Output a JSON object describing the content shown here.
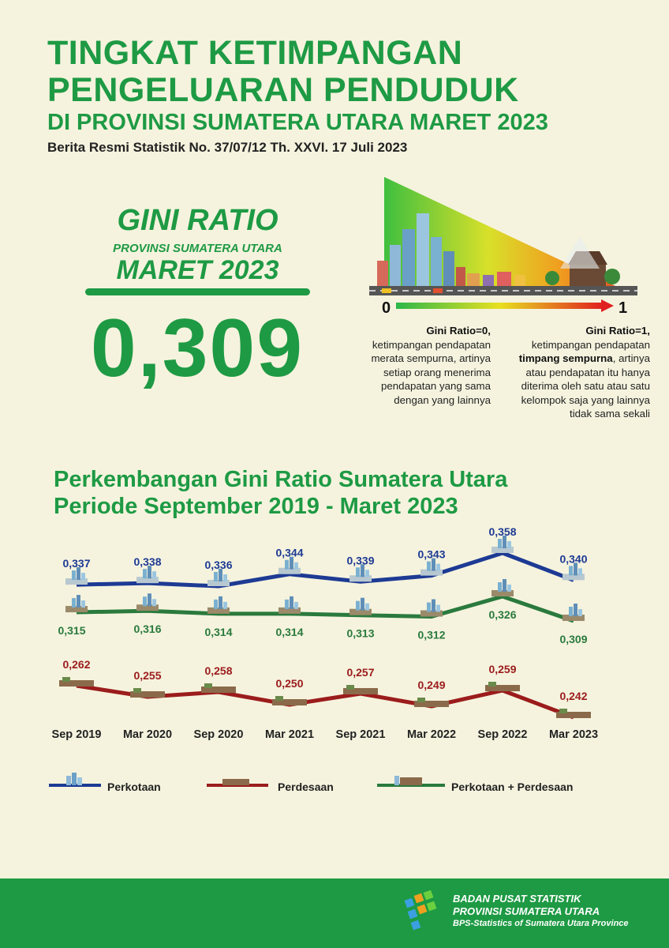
{
  "header": {
    "title_line1": "TINGKAT KETIMPANGAN",
    "title_line2": "PENGELUARAN PENDUDUK",
    "title_line3": "DI PROVINSI SUMATERA UTARA MARET 2023",
    "subtitle": "Berita Resmi Statistik No. 37/07/12 Th. XXVI. 17 Juli 2023"
  },
  "gini": {
    "label1": "GINI RATIO",
    "label2": "PROVINSI SUMATERA UTARA",
    "label3": "MARET 2023",
    "value": "0,309"
  },
  "scale": {
    "min_label": "0",
    "max_label": "1",
    "left_title": "Gini Ratio=0,",
    "left_text": "ketimpangan pendapatan merata sempurna, artinya setiap orang menerima pendapatan yang sama dengan yang lainnya",
    "right_title": "Gini Ratio=1,",
    "right_text1": "ketimpangan pendapatan",
    "right_bold": "timpang sempurna",
    "right_text2": ", artinya atau pendapatan itu hanya diterima oleh satu atau satu kelompok saja yang lainnya tidak sama sekali"
  },
  "chart_title_line1": "Perkembangan Gini Ratio Sumatera Utara",
  "chart_title_line2": "Periode September 2019 - Maret 2023",
  "chart_data": {
    "type": "line",
    "categories": [
      "Sep 2019",
      "Mar 2020",
      "Sep 2020",
      "Mar 2021",
      "Sep 2021",
      "Mar 2022",
      "Sep 2022",
      "Mar 2023"
    ],
    "series": [
      {
        "name": "Perkotaan",
        "values": [
          0.337,
          0.338,
          0.336,
          0.344,
          0.339,
          0.343,
          0.358,
          0.34
        ],
        "labels": [
          "0,337",
          "0,338",
          "0,336",
          "0,344",
          "0,339",
          "0,343",
          "0,358",
          "0,340"
        ],
        "color": "#1d3a94"
      },
      {
        "name": "Perkotaan + Perdesaan",
        "values": [
          0.315,
          0.316,
          0.314,
          0.314,
          0.313,
          0.312,
          0.326,
          0.309
        ],
        "labels": [
          "0,315",
          "0,316",
          "0,314",
          "0,314",
          "0,313",
          "0,312",
          "0,326",
          "0,309"
        ],
        "color": "#2a7a3d"
      },
      {
        "name": "Perdesaan",
        "values": [
          0.262,
          0.255,
          0.258,
          0.25,
          0.257,
          0.249,
          0.259,
          0.242
        ],
        "labels": [
          "0,262",
          "0,255",
          "0,258",
          "0,250",
          "0,257",
          "0,249",
          "0,259",
          "0,242"
        ],
        "color": "#9b1c1c"
      }
    ]
  },
  "legend": {
    "perkotaan": "Perkotaan",
    "perdesaan": "Perdesaan",
    "gabungan": "Perkotaan + Perdesaan"
  },
  "footer": {
    "line1": "BADAN PUSAT STATISTIK",
    "line2": "PROVINSI SUMATERA UTARA",
    "line3": "BPS-Statistics of Sumatera Utara Province"
  },
  "colors": {
    "brand_green": "#1e9a44",
    "urban_blue": "#1d3a94",
    "rural_red": "#9b1c1c",
    "combined_green": "#2a7a3d"
  }
}
